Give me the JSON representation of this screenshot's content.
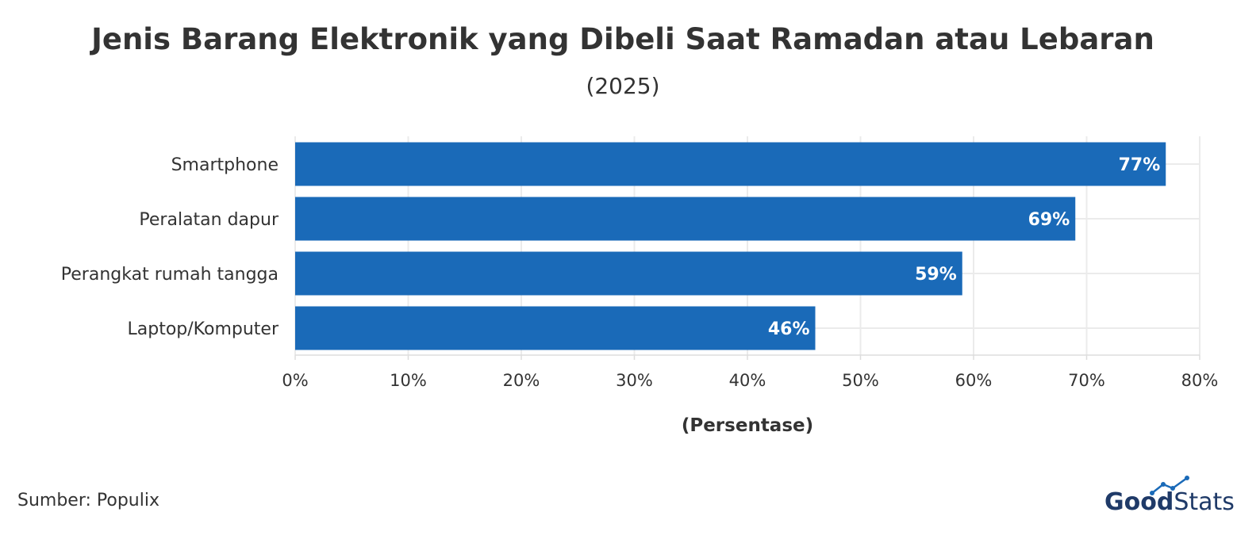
{
  "chart_data": {
    "type": "bar",
    "orientation": "horizontal",
    "title": "Jenis Barang Elektronik yang Dibeli Saat Ramadan atau Lebaran",
    "subtitle": "(2025)",
    "xlabel": "(Persentase)",
    "ylabel": "",
    "categories": [
      "Smartphone",
      "Peralatan dapur",
      "Perangkat rumah tangga",
      "Laptop/Komputer"
    ],
    "values": [
      77,
      69,
      59,
      46
    ],
    "value_labels": [
      "77%",
      "69%",
      "59%",
      "46%"
    ],
    "xlim": [
      0,
      80
    ],
    "xticks": [
      "0%",
      "10%",
      "20%",
      "30%",
      "40%",
      "50%",
      "60%",
      "70%",
      "80%"
    ],
    "bar_color": "#1a6ab8",
    "grid": true
  },
  "source": "Sumber: Populix",
  "logo": {
    "part1": "Good",
    "part2": "Stats",
    "color": "#1f3a68",
    "accent": "#1a6ab8"
  }
}
